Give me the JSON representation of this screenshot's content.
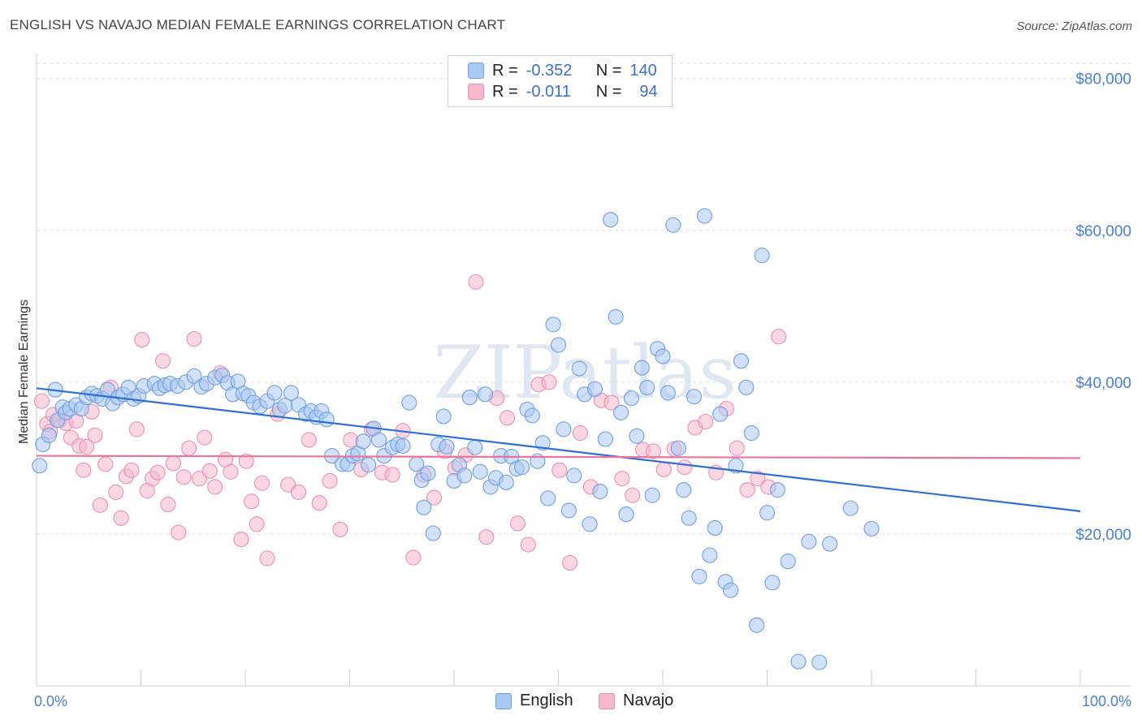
{
  "title": "ENGLISH VS NAVAJO MEDIAN FEMALE EARNINGS CORRELATION CHART",
  "source": "Source: ZipAtlas.com",
  "watermark": "ZIPatlas",
  "legend": {
    "rows": [
      {
        "r_label": "R =",
        "r_value": "-0.352",
        "n_label": "N =",
        "n_value": "140"
      },
      {
        "r_label": "R =",
        "r_value": "-0.011",
        "n_label": "N =",
        "n_value": "94"
      }
    ]
  },
  "colors": {
    "english_fill": "#a9c9f3",
    "english_stroke": "#6f9fe0",
    "english_line": "#2f6fd6",
    "navajo_fill": "#f6b8cc",
    "navajo_stroke": "#ec8fae",
    "navajo_line": "#e8769c",
    "tick_text": "#4a7fd4",
    "grid": "#dddddd"
  },
  "chart_data": {
    "type": "scatter",
    "title": "ENGLISH VS NAVAJO MEDIAN FEMALE EARNINGS CORRELATION CHART",
    "xlabel": "",
    "ylabel": "Median Female Earnings",
    "xlim": [
      0,
      100
    ],
    "ylim": [
      0,
      82000
    ],
    "x_tick_labels": [
      "0.0%",
      "100.0%"
    ],
    "y_ticks": [
      20000,
      40000,
      60000,
      80000
    ],
    "y_tick_labels": [
      "$20,000",
      "$40,000",
      "$60,000",
      "$80,000"
    ],
    "grid": true,
    "legend_position": "top-center",
    "series": [
      {
        "name": "English",
        "r": -0.352,
        "n": 140,
        "trend": {
          "x": [
            0,
            100
          ],
          "y": [
            39200,
            23000
          ]
        },
        "points": [
          [
            0.3,
            29000
          ],
          [
            0.6,
            31800
          ],
          [
            1.2,
            33000
          ],
          [
            1.8,
            39000
          ],
          [
            2.0,
            35000
          ],
          [
            2.5,
            36700
          ],
          [
            2.8,
            36000
          ],
          [
            3.2,
            36500
          ],
          [
            3.8,
            37000
          ],
          [
            4.3,
            36500
          ],
          [
            4.8,
            38000
          ],
          [
            5.3,
            38500
          ],
          [
            5.8,
            38200
          ],
          [
            6.3,
            37800
          ],
          [
            6.8,
            39000
          ],
          [
            7.3,
            37200
          ],
          [
            7.8,
            38000
          ],
          [
            8.3,
            38400
          ],
          [
            8.8,
            39300
          ],
          [
            9.3,
            37800
          ],
          [
            9.8,
            38200
          ],
          [
            10.3,
            39500
          ],
          [
            11.3,
            39800
          ],
          [
            11.8,
            39200
          ],
          [
            12.3,
            39600
          ],
          [
            12.8,
            39800
          ],
          [
            13.5,
            39500
          ],
          [
            14.3,
            40000
          ],
          [
            15.1,
            40800
          ],
          [
            15.8,
            39400
          ],
          [
            16.3,
            39800
          ],
          [
            17.1,
            40600
          ],
          [
            17.8,
            40900
          ],
          [
            18.3,
            39900
          ],
          [
            18.8,
            38400
          ],
          [
            19.3,
            40100
          ],
          [
            19.8,
            38500
          ],
          [
            20.3,
            38200
          ],
          [
            20.8,
            37300
          ],
          [
            21.4,
            36800
          ],
          [
            22.1,
            37500
          ],
          [
            22.8,
            38600
          ],
          [
            23.3,
            36400
          ],
          [
            23.8,
            36900
          ],
          [
            24.4,
            38600
          ],
          [
            25.1,
            37000
          ],
          [
            25.8,
            35800
          ],
          [
            26.3,
            36200
          ],
          [
            26.8,
            35400
          ],
          [
            27.3,
            36200
          ],
          [
            27.8,
            35100
          ],
          [
            28.3,
            30300
          ],
          [
            29.3,
            29200
          ],
          [
            29.8,
            29200
          ],
          [
            30.3,
            30300
          ],
          [
            30.8,
            30600
          ],
          [
            31.3,
            32200
          ],
          [
            31.8,
            29100
          ],
          [
            32.3,
            33900
          ],
          [
            32.8,
            32400
          ],
          [
            33.3,
            30300
          ],
          [
            34.1,
            31400
          ],
          [
            34.6,
            31800
          ],
          [
            35.1,
            31600
          ],
          [
            35.7,
            37300
          ],
          [
            36.4,
            29200
          ],
          [
            36.9,
            27100
          ],
          [
            37.1,
            23500
          ],
          [
            37.5,
            28000
          ],
          [
            38.0,
            20100
          ],
          [
            38.5,
            31800
          ],
          [
            39.0,
            35500
          ],
          [
            39.3,
            31500
          ],
          [
            40.0,
            27000
          ],
          [
            40.5,
            29100
          ],
          [
            41.0,
            27700
          ],
          [
            41.5,
            38000
          ],
          [
            42.0,
            31400
          ],
          [
            42.5,
            28200
          ],
          [
            43.0,
            38400
          ],
          [
            43.5,
            26200
          ],
          [
            44.0,
            27400
          ],
          [
            44.5,
            30300
          ],
          [
            45.0,
            26800
          ],
          [
            45.5,
            30200
          ],
          [
            46.0,
            28600
          ],
          [
            46.5,
            28800
          ],
          [
            47.0,
            36400
          ],
          [
            47.5,
            35600
          ],
          [
            48.0,
            29600
          ],
          [
            48.5,
            32000
          ],
          [
            49.0,
            24700
          ],
          [
            49.5,
            47600
          ],
          [
            50.0,
            44900
          ],
          [
            50.5,
            33800
          ],
          [
            51.0,
            23100
          ],
          [
            51.5,
            27700
          ],
          [
            52.0,
            41800
          ],
          [
            52.5,
            38400
          ],
          [
            53.0,
            21300
          ],
          [
            53.5,
            39100
          ],
          [
            54.0,
            25600
          ],
          [
            54.5,
            32500
          ],
          [
            55.0,
            61400
          ],
          [
            55.5,
            48600
          ],
          [
            56.0,
            36000
          ],
          [
            56.5,
            22600
          ],
          [
            57.0,
            37900
          ],
          [
            57.5,
            32900
          ],
          [
            58.0,
            41900
          ],
          [
            58.5,
            39300
          ],
          [
            59.0,
            25100
          ],
          [
            59.5,
            44400
          ],
          [
            60.0,
            43400
          ],
          [
            60.5,
            38600
          ],
          [
            61.0,
            60700
          ],
          [
            61.5,
            31300
          ],
          [
            62.0,
            25800
          ],
          [
            62.5,
            22100
          ],
          [
            63.0,
            38100
          ],
          [
            63.5,
            14400
          ],
          [
            64.0,
            61900
          ],
          [
            64.5,
            17200
          ],
          [
            65.0,
            20800
          ],
          [
            65.5,
            35800
          ],
          [
            66.0,
            13700
          ],
          [
            66.5,
            12600
          ],
          [
            67.0,
            29000
          ],
          [
            67.5,
            42800
          ],
          [
            68.0,
            39300
          ],
          [
            68.5,
            33300
          ],
          [
            69.0,
            8000
          ],
          [
            69.5,
            56700
          ],
          [
            70.0,
            22800
          ],
          [
            70.5,
            13600
          ],
          [
            71.0,
            25800
          ],
          [
            72.0,
            16400
          ],
          [
            73.0,
            3200
          ],
          [
            74.0,
            19000
          ],
          [
            75.0,
            3100
          ],
          [
            76.0,
            18700
          ],
          [
            78.0,
            23400
          ],
          [
            80.0,
            20700
          ]
        ]
      },
      {
        "name": "Navajo",
        "r": -0.011,
        "n": 94,
        "trend": {
          "x": [
            0,
            100
          ],
          "y": [
            30300,
            30000
          ]
        },
        "points": [
          [
            0.5,
            37500
          ],
          [
            1.0,
            34500
          ],
          [
            1.3,
            33500
          ],
          [
            1.6,
            35700
          ],
          [
            2.2,
            35000
          ],
          [
            2.8,
            34600
          ],
          [
            3.3,
            32700
          ],
          [
            3.8,
            34900
          ],
          [
            4.1,
            31600
          ],
          [
            4.5,
            28400
          ],
          [
            4.8,
            31500
          ],
          [
            5.3,
            36100
          ],
          [
            5.6,
            33000
          ],
          [
            6.1,
            23800
          ],
          [
            6.6,
            29200
          ],
          [
            7.1,
            39300
          ],
          [
            7.6,
            25500
          ],
          [
            8.1,
            22100
          ],
          [
            8.6,
            27600
          ],
          [
            9.1,
            28400
          ],
          [
            9.6,
            33800
          ],
          [
            10.1,
            45600
          ],
          [
            10.6,
            25700
          ],
          [
            11.1,
            27300
          ],
          [
            11.6,
            28100
          ],
          [
            12.1,
            42800
          ],
          [
            12.6,
            23900
          ],
          [
            13.1,
            29300
          ],
          [
            13.6,
            20200
          ],
          [
            14.1,
            27500
          ],
          [
            14.6,
            31300
          ],
          [
            15.1,
            45700
          ],
          [
            15.6,
            27300
          ],
          [
            16.1,
            32700
          ],
          [
            16.6,
            28300
          ],
          [
            17.1,
            26200
          ],
          [
            17.6,
            41200
          ],
          [
            18.1,
            29800
          ],
          [
            18.6,
            28200
          ],
          [
            19.6,
            19300
          ],
          [
            20.1,
            29600
          ],
          [
            20.6,
            24300
          ],
          [
            21.1,
            21300
          ],
          [
            21.6,
            26700
          ],
          [
            22.1,
            16800
          ],
          [
            23.1,
            35800
          ],
          [
            24.1,
            26500
          ],
          [
            25.1,
            25500
          ],
          [
            26.1,
            32400
          ],
          [
            27.1,
            24100
          ],
          [
            28.1,
            27000
          ],
          [
            29.1,
            20600
          ],
          [
            30.1,
            32400
          ],
          [
            31.1,
            28500
          ],
          [
            32.1,
            33800
          ],
          [
            33.1,
            28100
          ],
          [
            34.1,
            27800
          ],
          [
            35.1,
            33600
          ],
          [
            36.1,
            16900
          ],
          [
            37.1,
            27800
          ],
          [
            38.1,
            24800
          ],
          [
            39.1,
            30900
          ],
          [
            40.1,
            28700
          ],
          [
            41.1,
            30400
          ],
          [
            42.1,
            53200
          ],
          [
            43.1,
            19600
          ],
          [
            44.1,
            37900
          ],
          [
            45.1,
            35300
          ],
          [
            46.1,
            21400
          ],
          [
            47.1,
            18600
          ],
          [
            48.1,
            39700
          ],
          [
            49.1,
            40000
          ],
          [
            50.1,
            28400
          ],
          [
            51.1,
            16200
          ],
          [
            52.1,
            33300
          ],
          [
            53.1,
            26200
          ],
          [
            54.1,
            37600
          ],
          [
            55.1,
            37300
          ],
          [
            56.1,
            27300
          ],
          [
            57.1,
            25100
          ],
          [
            58.1,
            31100
          ],
          [
            59.1,
            30900
          ],
          [
            60.1,
            28500
          ],
          [
            61.1,
            31200
          ],
          [
            62.1,
            28800
          ],
          [
            63.1,
            34000
          ],
          [
            64.1,
            34800
          ],
          [
            65.1,
            28100
          ],
          [
            66.1,
            36500
          ],
          [
            67.1,
            31300
          ],
          [
            68.1,
            25800
          ],
          [
            69.1,
            27300
          ],
          [
            70.1,
            26200
          ],
          [
            71.1,
            46000
          ]
        ]
      }
    ]
  }
}
